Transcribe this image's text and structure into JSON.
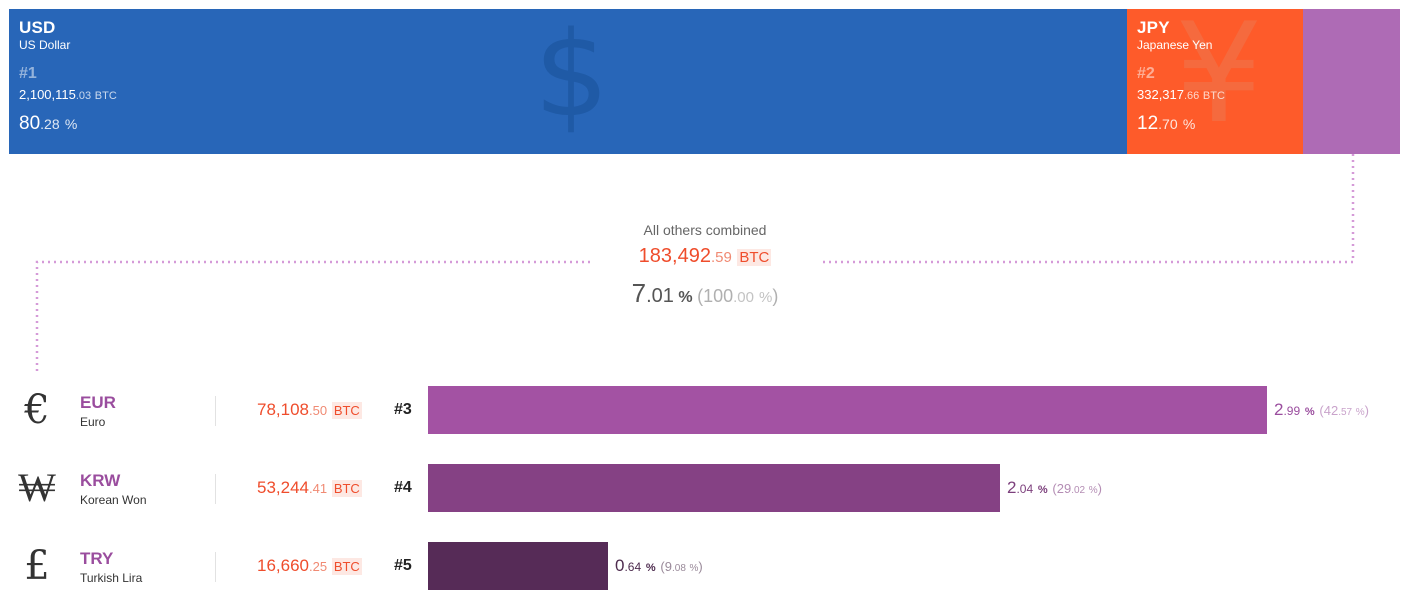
{
  "chart_data": {
    "type": "treemap-bar",
    "unit": "BTC",
    "top": [
      {
        "code": "USD",
        "name": "US Dollar",
        "rank": "#1",
        "amount_int": "2,100,115",
        "amount_dec": ".03",
        "unit": "BTC",
        "pct_int": "80",
        "pct_dec": ".28",
        "pct_sym": "%",
        "value": 2100115.03,
        "percent": 80.28,
        "color": "#2866b8",
        "glyph": "$",
        "glyph_color": "#1f5aa6"
      },
      {
        "code": "JPY",
        "name": "Japanese Yen",
        "rank": "#2",
        "amount_int": "332,317",
        "amount_dec": ".66",
        "unit": "BTC",
        "pct_int": "12",
        "pct_dec": ".70",
        "pct_sym": "%",
        "value": 332317.66,
        "percent": 12.7,
        "color": "#fe5b2a",
        "glyph": "¥",
        "glyph_color": "#f56a3e"
      },
      {
        "code": "",
        "name": "",
        "rank": "",
        "amount_int": "",
        "amount_dec": "",
        "unit": "",
        "pct_int": "",
        "pct_dec": "",
        "pct_sym": "",
        "value": 183492.59,
        "percent": 7.01,
        "color": "#ae6bb5",
        "glyph": "",
        "glyph_color": "#ae6bb5"
      }
    ],
    "others": {
      "label": "All others combined",
      "amount_int": "183,492",
      "amount_dec": ".59",
      "unit": "BTC",
      "pct_int": "7",
      "pct_dec": ".01",
      "pct_sym": "%",
      "total_open": "(",
      "total_int": "100",
      "total_dec": ".00",
      "total_sym": "%",
      "total_close": ")",
      "value": 183492.59,
      "percent": 7.01
    },
    "rows": [
      {
        "glyph": "€",
        "code": "EUR",
        "name": "Euro",
        "amount_int": "78,108",
        "amount_dec": ".50",
        "unit": "BTC",
        "rank": "#3",
        "pct_int": "2",
        "pct_dec": ".99",
        "pct_sym": "%",
        "share_open": "(",
        "share_int": "42",
        "share_dec": ".57",
        "share_sym": "%",
        "share_close": ")",
        "value": 78108.5,
        "percent": 2.99,
        "share_of_others": 42.57,
        "bar_color": "#a352a3",
        "pct_color": "#9a4d9e",
        "share_color": "#c9a3cb"
      },
      {
        "glyph": "₩",
        "code": "KRW",
        "name": "Korean Won",
        "amount_int": "53,244",
        "amount_dec": ".41",
        "unit": "BTC",
        "rank": "#4",
        "pct_int": "2",
        "pct_dec": ".04",
        "pct_sym": "%",
        "share_open": "(",
        "share_int": "29",
        "share_dec": ".02",
        "share_sym": "%",
        "share_close": ")",
        "value": 53244.41,
        "percent": 2.04,
        "share_of_others": 29.02,
        "bar_color": "#854184",
        "pct_color": "#7c3f7c",
        "share_color": "#b48db4"
      },
      {
        "glyph": "£",
        "code": "TRY",
        "name": "Turkish Lira",
        "amount_int": "16,660",
        "amount_dec": ".25",
        "unit": "BTC",
        "rank": "#5",
        "pct_int": "0",
        "pct_dec": ".64",
        "pct_sym": "%",
        "share_open": "(",
        "share_int": "9",
        "share_dec": ".08",
        "share_sym": "%",
        "share_close": ")",
        "value": 16660.25,
        "percent": 0.64,
        "share_of_others": 9.08,
        "bar_color": "#562b57",
        "pct_color": "#4e2c4f",
        "share_color": "#9a8a9a"
      }
    ],
    "row_scale_max_percent": 3.0
  }
}
